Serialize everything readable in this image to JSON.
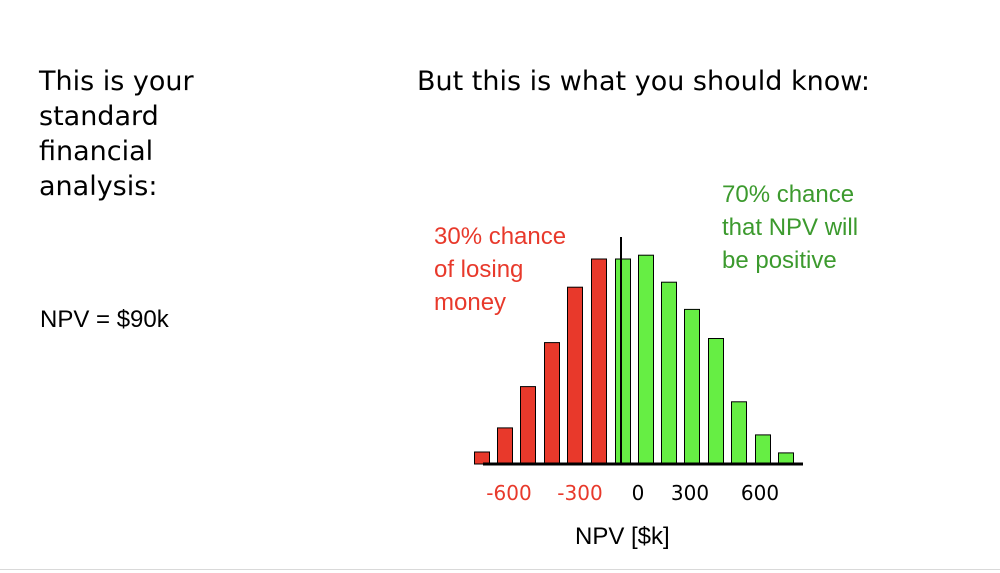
{
  "left": {
    "heading_lines": [
      "This is your",
      "standard",
      "financial",
      "analysis:"
    ],
    "npv_text": "NPV = $90k"
  },
  "right": {
    "heading": "But this is what you should know:"
  },
  "annotations": {
    "negative_lines": [
      "30% chance",
      "of losing",
      "money"
    ],
    "positive_lines": [
      "70% chance",
      "that NPV will",
      "be positive"
    ]
  },
  "colors": {
    "negative": "#e8392b",
    "positive": "#66ee44",
    "negative_text": "#e8392b",
    "positive_text": "#3c9a2e"
  },
  "chart_data": {
    "type": "bar",
    "title": "",
    "xlabel": "NPV [$k]",
    "ylabel": "",
    "x_ticks": [
      {
        "value": -600,
        "label": "-600",
        "color": "#e8392b"
      },
      {
        "value": -300,
        "label": "-300",
        "color": "#e8392b"
      },
      {
        "value": 0,
        "label": "0",
        "color": "#000000"
      },
      {
        "value": 300,
        "label": "300",
        "color": "#000000"
      },
      {
        "value": 600,
        "label": "600",
        "color": "#000000"
      }
    ],
    "xlim": [
      -775,
      780
    ],
    "ylim": [
      0,
      1
    ],
    "zero_line_at": 0,
    "bin_width": 100,
    "series": [
      {
        "values": [
          {
            "x": -695,
            "y": 0.053
          },
          {
            "x": -580,
            "y": 0.159
          },
          {
            "x": -465,
            "y": 0.341
          },
          {
            "x": -345,
            "y": 0.535
          },
          {
            "x": -230,
            "y": 0.779
          },
          {
            "x": -110,
            "y": 0.903
          }
        ],
        "color": "#e8392b"
      },
      {
        "values": [
          {
            "x": 10,
            "y": 0.903
          },
          {
            "x": 125,
            "y": 0.92
          },
          {
            "x": 240,
            "y": 0.801
          },
          {
            "x": 355,
            "y": 0.681
          },
          {
            "x": 475,
            "y": 0.553
          },
          {
            "x": 590,
            "y": 0.274
          },
          {
            "x": 710,
            "y": 0.128
          },
          {
            "x": 825,
            "y": 0.049
          }
        ],
        "color": "#66ee44"
      }
    ],
    "grid": false,
    "legend": "none"
  }
}
